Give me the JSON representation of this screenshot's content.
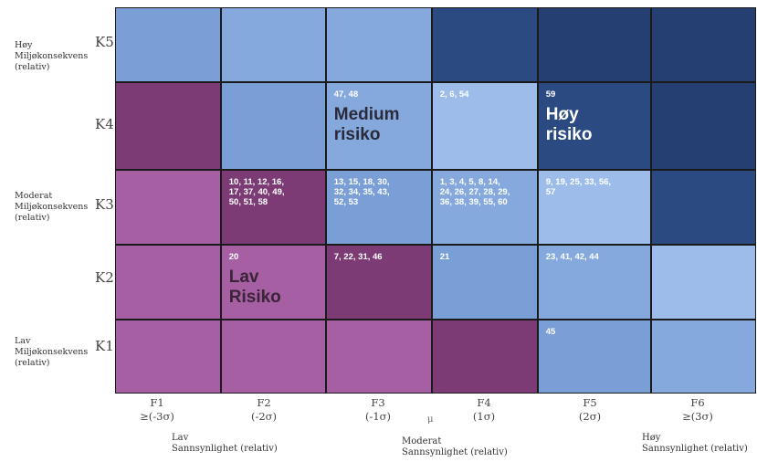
{
  "colors": {
    "light_blue": "#7a9ed6",
    "light_blue_alt": "#86a9dd",
    "pale_blue": "#9dbcea",
    "dark_blue": "#2c4a82",
    "darker_blue": "#253f73",
    "magenta": "#a65fa2",
    "dark_purple": "#7c3b74"
  },
  "rows": [
    {
      "label": "K5",
      "description": "Høy\nMiljøkonsekvens\n(relativ)"
    },
    {
      "label": "K4",
      "description": ""
    },
    {
      "label": "K3",
      "description": "Moderat\nMiljøkonsekvens\n(relativ)"
    },
    {
      "label": "K2",
      "description": ""
    },
    {
      "label": "K1",
      "description": "Lav\nMiljøkonsekvens\n(relativ)"
    }
  ],
  "columns": [
    {
      "label": "F1",
      "sigma": "≥(-3σ)"
    },
    {
      "label": "F2",
      "sigma": "(-2σ)"
    },
    {
      "label": "F3",
      "sigma": "(-1σ)"
    },
    {
      "label": "F4",
      "sigma": "(1σ)"
    },
    {
      "label": "F5",
      "sigma": "(2σ)"
    },
    {
      "label": "F6",
      "sigma": "≥(3σ)"
    }
  ],
  "mu_symbol": "μ",
  "column_descriptions": {
    "low": "Lav\nSannsynlighet (relativ)",
    "moderate": "Moderat\nSannsynlighet (relativ)",
    "high": "Høy\nSannsynlighet (relativ)"
  },
  "cells": [
    [
      {
        "color": "light_blue",
        "numbers": "",
        "zone": ""
      },
      {
        "color": "light_blue_alt",
        "numbers": "",
        "zone": ""
      },
      {
        "color": "light_blue_alt",
        "numbers": "",
        "zone": ""
      },
      {
        "color": "dark_blue",
        "numbers": "",
        "zone": ""
      },
      {
        "color": "darker_blue",
        "numbers": "",
        "zone": ""
      },
      {
        "color": "darker_blue",
        "numbers": "",
        "zone": ""
      }
    ],
    [
      {
        "color": "dark_purple",
        "numbers": "",
        "zone": ""
      },
      {
        "color": "light_blue",
        "numbers": "",
        "zone": ""
      },
      {
        "color": "light_blue_alt",
        "numbers": "47, 48",
        "zone": "Medium\nrisiko",
        "zone_color": "#2a2a3a"
      },
      {
        "color": "pale_blue",
        "numbers": "2, 6, 54",
        "zone": ""
      },
      {
        "color": "dark_blue",
        "numbers": "59",
        "zone": "Høy\nrisiko",
        "zone_color": "#ffffff"
      },
      {
        "color": "darker_blue",
        "numbers": "",
        "zone": ""
      }
    ],
    [
      {
        "color": "magenta",
        "numbers": "",
        "zone": ""
      },
      {
        "color": "dark_purple",
        "numbers": "10, 11, 12, 16,\n17, 37, 40, 49,\n50, 51, 58",
        "zone": ""
      },
      {
        "color": "light_blue",
        "numbers": "13, 15, 18, 30,\n32, 34, 35, 43,\n52, 53",
        "zone": ""
      },
      {
        "color": "light_blue_alt",
        "numbers": "1, 3, 4, 5, 8, 14,\n24, 26, 27, 28, 29,\n36, 38, 39, 55, 60",
        "zone": ""
      },
      {
        "color": "pale_blue",
        "numbers": "9, 19, 25, 33, 56,\n57",
        "zone": ""
      },
      {
        "color": "dark_blue",
        "numbers": "",
        "zone": ""
      }
    ],
    [
      {
        "color": "magenta",
        "numbers": "",
        "zone": ""
      },
      {
        "color": "magenta",
        "numbers": "20",
        "zone": "Lav\nRisiko",
        "zone_color": "#3a2438"
      },
      {
        "color": "dark_purple",
        "numbers": "7, 22, 31, 46",
        "zone": ""
      },
      {
        "color": "light_blue",
        "numbers": "21",
        "zone": ""
      },
      {
        "color": "light_blue_alt",
        "numbers": "23, 41, 42, 44",
        "zone": ""
      },
      {
        "color": "pale_blue",
        "numbers": "",
        "zone": ""
      }
    ],
    [
      {
        "color": "magenta",
        "numbers": "",
        "zone": ""
      },
      {
        "color": "magenta",
        "numbers": "",
        "zone": ""
      },
      {
        "color": "magenta",
        "numbers": "",
        "zone": ""
      },
      {
        "color": "dark_purple",
        "numbers": "",
        "zone": ""
      },
      {
        "color": "light_blue",
        "numbers": "45",
        "zone": ""
      },
      {
        "color": "light_blue_alt",
        "numbers": "",
        "zone": ""
      }
    ]
  ]
}
